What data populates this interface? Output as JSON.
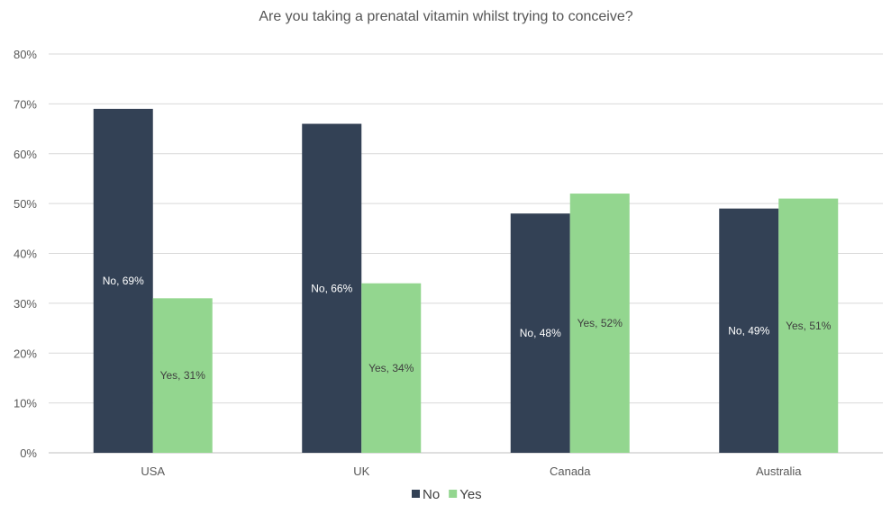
{
  "chart_data": {
    "type": "bar",
    "title": "Are you taking a prenatal vitamin whilst trying to conceive?",
    "xlabel": "",
    "ylabel": "",
    "categories": [
      "USA",
      "UK",
      "Canada",
      "Australia"
    ],
    "series": [
      {
        "name": "No",
        "color": "#334155",
        "values": [
          69,
          66,
          48,
          49
        ],
        "labels": [
          "No, 69%",
          "No, 66%",
          "No, 48%",
          "No, 49%"
        ]
      },
      {
        "name": "Yes",
        "color": "#93d68f",
        "values": [
          31,
          34,
          52,
          51
        ],
        "labels": [
          "Yes, 31%",
          "Yes, 34%",
          "Yes, 52%",
          "Yes, 51%"
        ]
      }
    ],
    "ylim": [
      0,
      80
    ],
    "yticks": [
      "0%",
      "10%",
      "20%",
      "30%",
      "40%",
      "50%",
      "60%",
      "70%",
      "80%"
    ],
    "grid": true,
    "legend_position": "bottom"
  }
}
